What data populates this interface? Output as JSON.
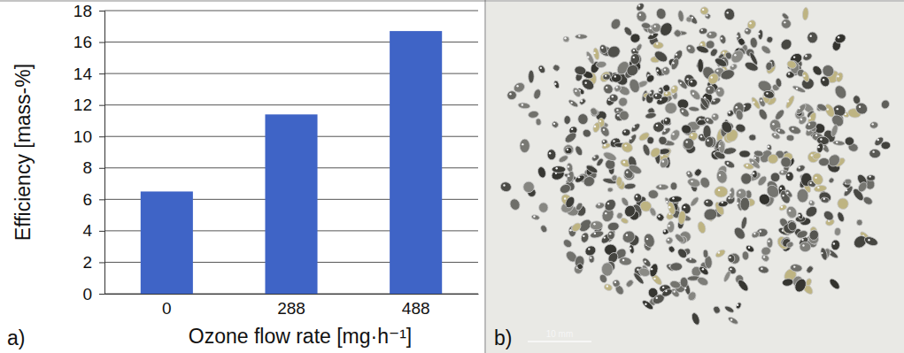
{
  "chart_data": {
    "type": "bar",
    "panel_label": "a)",
    "categories": [
      "0",
      "288",
      "488"
    ],
    "values": [
      6.5,
      11.4,
      16.7
    ],
    "color": "#3f64c6",
    "x_label": "Ozone flow rate [mg·h⁻¹]",
    "y_label": "Efficiency [mass-%]",
    "ylim": [
      0,
      18
    ],
    "yticks": [
      0,
      2,
      4,
      6,
      8,
      10,
      12,
      14,
      16,
      18
    ],
    "grid": true
  },
  "photo": {
    "panel_label": "b)",
    "scale_bar_label": "10 mm"
  }
}
